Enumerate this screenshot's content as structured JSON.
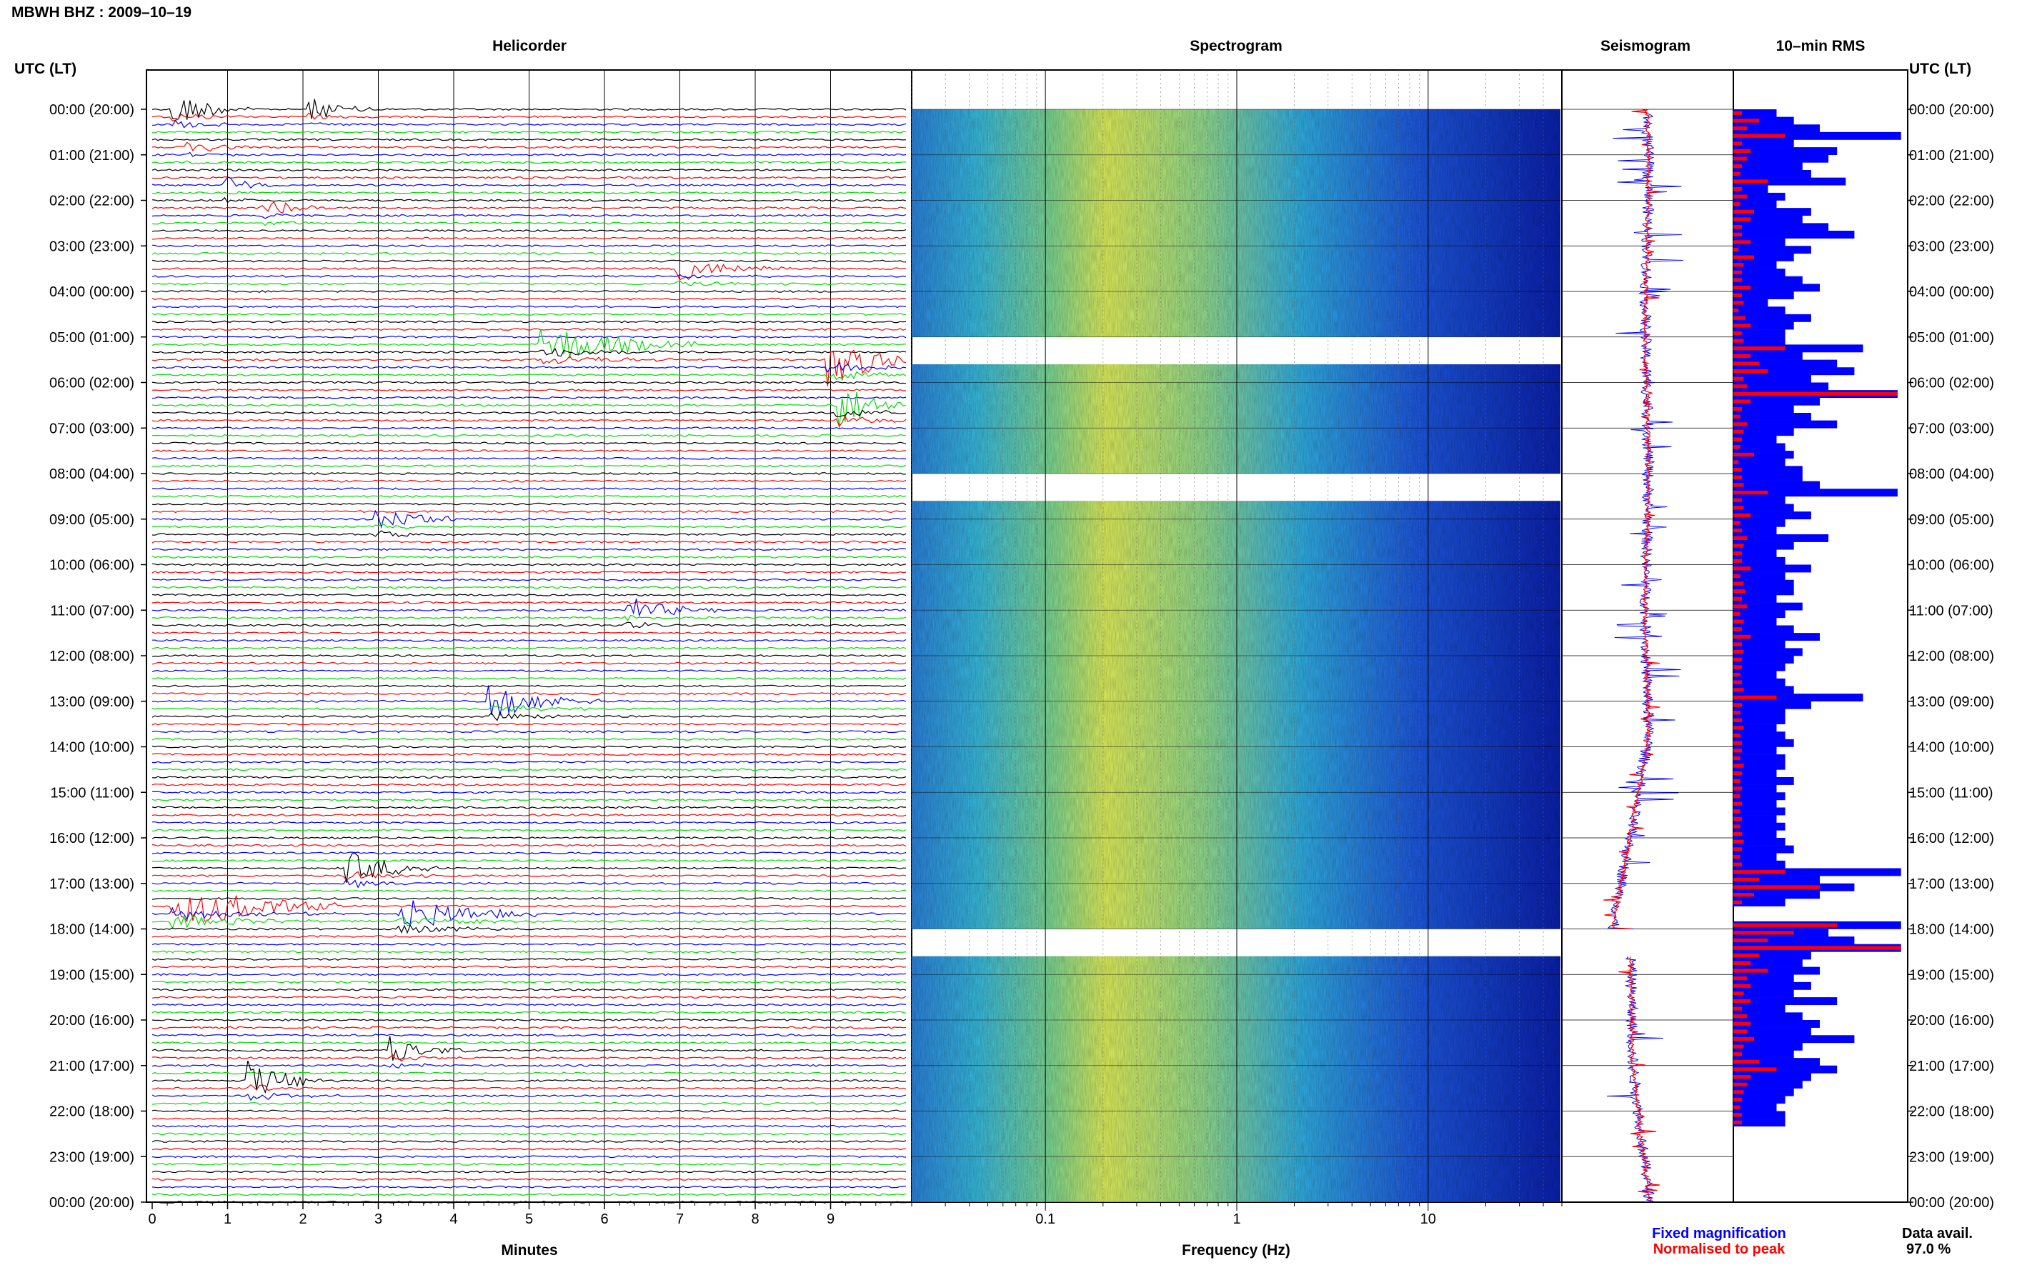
{
  "station_title": "MBWH BHZ : 2009–10–19",
  "panel_titles": {
    "helicorder": "Helicorder",
    "spectrogram": "Spectrogram",
    "seismogram": "Seismogram",
    "rms": "10–min RMS"
  },
  "axis_headers": {
    "left": "UTC (LT)",
    "right": "UTC (LT)"
  },
  "legend": {
    "fixed": "Fixed magnification",
    "normalised": "Normalised to peak",
    "fixed_color": "#0000ff",
    "normalised_color": "#ff0000"
  },
  "data_avail": {
    "label": "Data avail.",
    "value": "97.0 %"
  },
  "chart_data": [
    {
      "type": "line",
      "name": "helicorder",
      "xlabel": "Minutes",
      "x_ticks": [
        "0",
        "1",
        "2",
        "3",
        "4",
        "5",
        "6",
        "7",
        "8",
        "9"
      ],
      "xlim": [
        0,
        10
      ],
      "time_labels_left": [
        "00:00 (20:00)",
        "01:00 (21:00)",
        "02:00 (22:00)",
        "03:00 (23:00)",
        "04:00 (00:00)",
        "05:00 (01:00)",
        "06:00 (02:00)",
        "07:00 (03:00)",
        "08:00 (04:00)",
        "09:00 (05:00)",
        "10:00 (06:00)",
        "11:00 (07:00)",
        "12:00 (08:00)",
        "13:00 (09:00)",
        "14:00 (10:00)",
        "15:00 (11:00)",
        "16:00 (12:00)",
        "17:00 (13:00)",
        "18:00 (14:00)",
        "19:00 (15:00)",
        "20:00 (16:00)",
        "21:00 (17:00)",
        "22:00 (18:00)",
        "23:00 (19:00)",
        "00:00 (20:00)"
      ],
      "trace_colors": [
        "#000000",
        "#ff0000",
        "#0000ff",
        "#00dd00"
      ],
      "lines_per_hour": 6,
      "events": [
        {
          "line": 0,
          "minute": 0.3,
          "amp": 2.5,
          "dur": 1.0
        },
        {
          "line": 0,
          "minute": 2.1,
          "amp": 1.6,
          "dur": 0.9
        },
        {
          "line": 5,
          "minute": 0.5,
          "amp": 1.2,
          "dur": 0.8
        },
        {
          "line": 10,
          "minute": 1.0,
          "amp": 1.3,
          "dur": 0.7
        },
        {
          "line": 13,
          "minute": 1.5,
          "amp": 1.2,
          "dur": 0.9
        },
        {
          "line": 21,
          "minute": 7.0,
          "amp": 1.5,
          "dur": 1.5
        },
        {
          "line": 31,
          "minute": 5.2,
          "amp": 3.0,
          "dur": 2.0
        },
        {
          "line": 33,
          "minute": 9.0,
          "amp": 4.0,
          "dur": 1.2
        },
        {
          "line": 39,
          "minute": 9.1,
          "amp": 3.5,
          "dur": 1.0
        },
        {
          "line": 54,
          "minute": 3.0,
          "amp": 1.8,
          "dur": 1.2
        },
        {
          "line": 66,
          "minute": 6.3,
          "amp": 1.8,
          "dur": 1.2
        },
        {
          "line": 78,
          "minute": 4.5,
          "amp": 2.5,
          "dur": 1.5
        },
        {
          "line": 100,
          "minute": 2.6,
          "amp": 2.5,
          "dur": 1.2
        },
        {
          "line": 105,
          "minute": 0.3,
          "amp": 3.5,
          "dur": 2.2
        },
        {
          "line": 106,
          "minute": 3.3,
          "amp": 2.5,
          "dur": 1.8
        },
        {
          "line": 124,
          "minute": 3.2,
          "amp": 1.8,
          "dur": 1.0
        },
        {
          "line": 128,
          "minute": 1.3,
          "amp": 2.5,
          "dur": 1.2
        }
      ]
    },
    {
      "type": "heatmap",
      "name": "spectrogram",
      "xlabel": "Frequency (Hz)",
      "x_scale": "log",
      "xlim": [
        0.02,
        50
      ],
      "x_ticks": [
        "0.1",
        "1",
        "10"
      ],
      "gap_hours": [
        5,
        8,
        18
      ]
    },
    {
      "type": "line",
      "name": "seismogram",
      "series": [
        {
          "name": "Fixed magnification",
          "color": "#0000ff"
        },
        {
          "name": "Normalised to peak",
          "color": "#ff0000"
        }
      ],
      "gap_hours": [
        18
      ]
    },
    {
      "type": "bar",
      "name": "10-min RMS",
      "orientation": "horizontal",
      "blue_values": [
        0.25,
        0.35,
        0.5,
        0.97,
        0.35,
        0.6,
        0.55,
        0.4,
        0.45,
        0.65,
        0.2,
        0.3,
        0.25,
        0.45,
        0.4,
        0.55,
        0.7,
        0.3,
        0.45,
        0.35,
        0.25,
        0.3,
        0.4,
        0.5,
        0.35,
        0.2,
        0.3,
        0.45,
        0.35,
        0.3,
        0.3,
        0.75,
        0.4,
        0.6,
        0.7,
        0.45,
        0.55,
        0.95,
        0.5,
        0.35,
        0.45,
        0.6,
        0.35,
        0.25,
        0.3,
        0.35,
        0.3,
        0.4,
        0.4,
        0.5,
        0.95,
        0.3,
        0.35,
        0.45,
        0.3,
        0.25,
        0.55,
        0.35,
        0.25,
        0.3,
        0.45,
        0.3,
        0.35,
        0.35,
        0.25,
        0.4,
        0.3,
        0.25,
        0.35,
        0.5,
        0.3,
        0.4,
        0.35,
        0.3,
        0.25,
        0.3,
        0.35,
        0.75,
        0.45,
        0.3,
        0.3,
        0.25,
        0.3,
        0.35,
        0.25,
        0.3,
        0.3,
        0.25,
        0.35,
        0.25,
        0.3,
        0.25,
        0.3,
        0.25,
        0.3,
        0.25,
        0.3,
        0.35,
        0.25,
        0.3,
        0.97,
        0.5,
        0.7,
        0.5,
        0.3,
        null,
        null,
        0.97,
        0.55,
        0.7,
        0.97,
        0.45,
        0.4,
        0.5,
        0.35,
        0.45,
        0.35,
        0.6,
        0.3,
        0.4,
        0.5,
        0.45,
        0.7,
        0.4,
        0.35,
        0.5,
        0.6,
        0.45,
        0.4,
        0.35,
        0.3,
        0.25,
        0.3,
        0.3
      ],
      "red_values": [
        0.05,
        0.15,
        0.08,
        0.3,
        0.05,
        0.1,
        0.08,
        0.05,
        0.04,
        0.2,
        0.05,
        0.08,
        0.04,
        0.12,
        0.1,
        0.05,
        0.05,
        0.1,
        0.03,
        0.12,
        0.06,
        0.05,
        0.05,
        0.1,
        0.05,
        0.06,
        0.03,
        0.07,
        0.1,
        0.05,
        0.06,
        0.3,
        0.1,
        0.15,
        0.2,
        0.06,
        0.08,
        0.95,
        0.1,
        0.05,
        0.04,
        0.08,
        0.06,
        0.05,
        0.04,
        0.12,
        0.03,
        0.05,
        0.05,
        0.06,
        0.2,
        0.05,
        0.06,
        0.1,
        0.04,
        0.05,
        0.08,
        0.06,
        0.05,
        0.05,
        0.1,
        0.04,
        0.06,
        0.07,
        0.05,
        0.08,
        0.04,
        0.06,
        0.05,
        0.1,
        0.05,
        0.06,
        0.05,
        0.05,
        0.04,
        0.05,
        0.06,
        0.25,
        0.05,
        0.04,
        0.05,
        0.06,
        0.04,
        0.05,
        0.05,
        0.04,
        0.06,
        0.05,
        0.04,
        0.05,
        0.04,
        0.05,
        0.04,
        0.05,
        0.04,
        0.05,
        0.06,
        0.05,
        0.04,
        0.05,
        0.3,
        0.15,
        0.5,
        0.12,
        0.05,
        null,
        null,
        0.6,
        0.35,
        0.2,
        0.97,
        0.15,
        0.1,
        0.2,
        0.08,
        0.1,
        0.06,
        0.1,
        0.05,
        0.08,
        0.1,
        0.08,
        0.12,
        0.06,
        0.05,
        0.15,
        0.25,
        0.1,
        0.08,
        0.06,
        0.05,
        0.04,
        0.05,
        0.05
      ]
    }
  ]
}
